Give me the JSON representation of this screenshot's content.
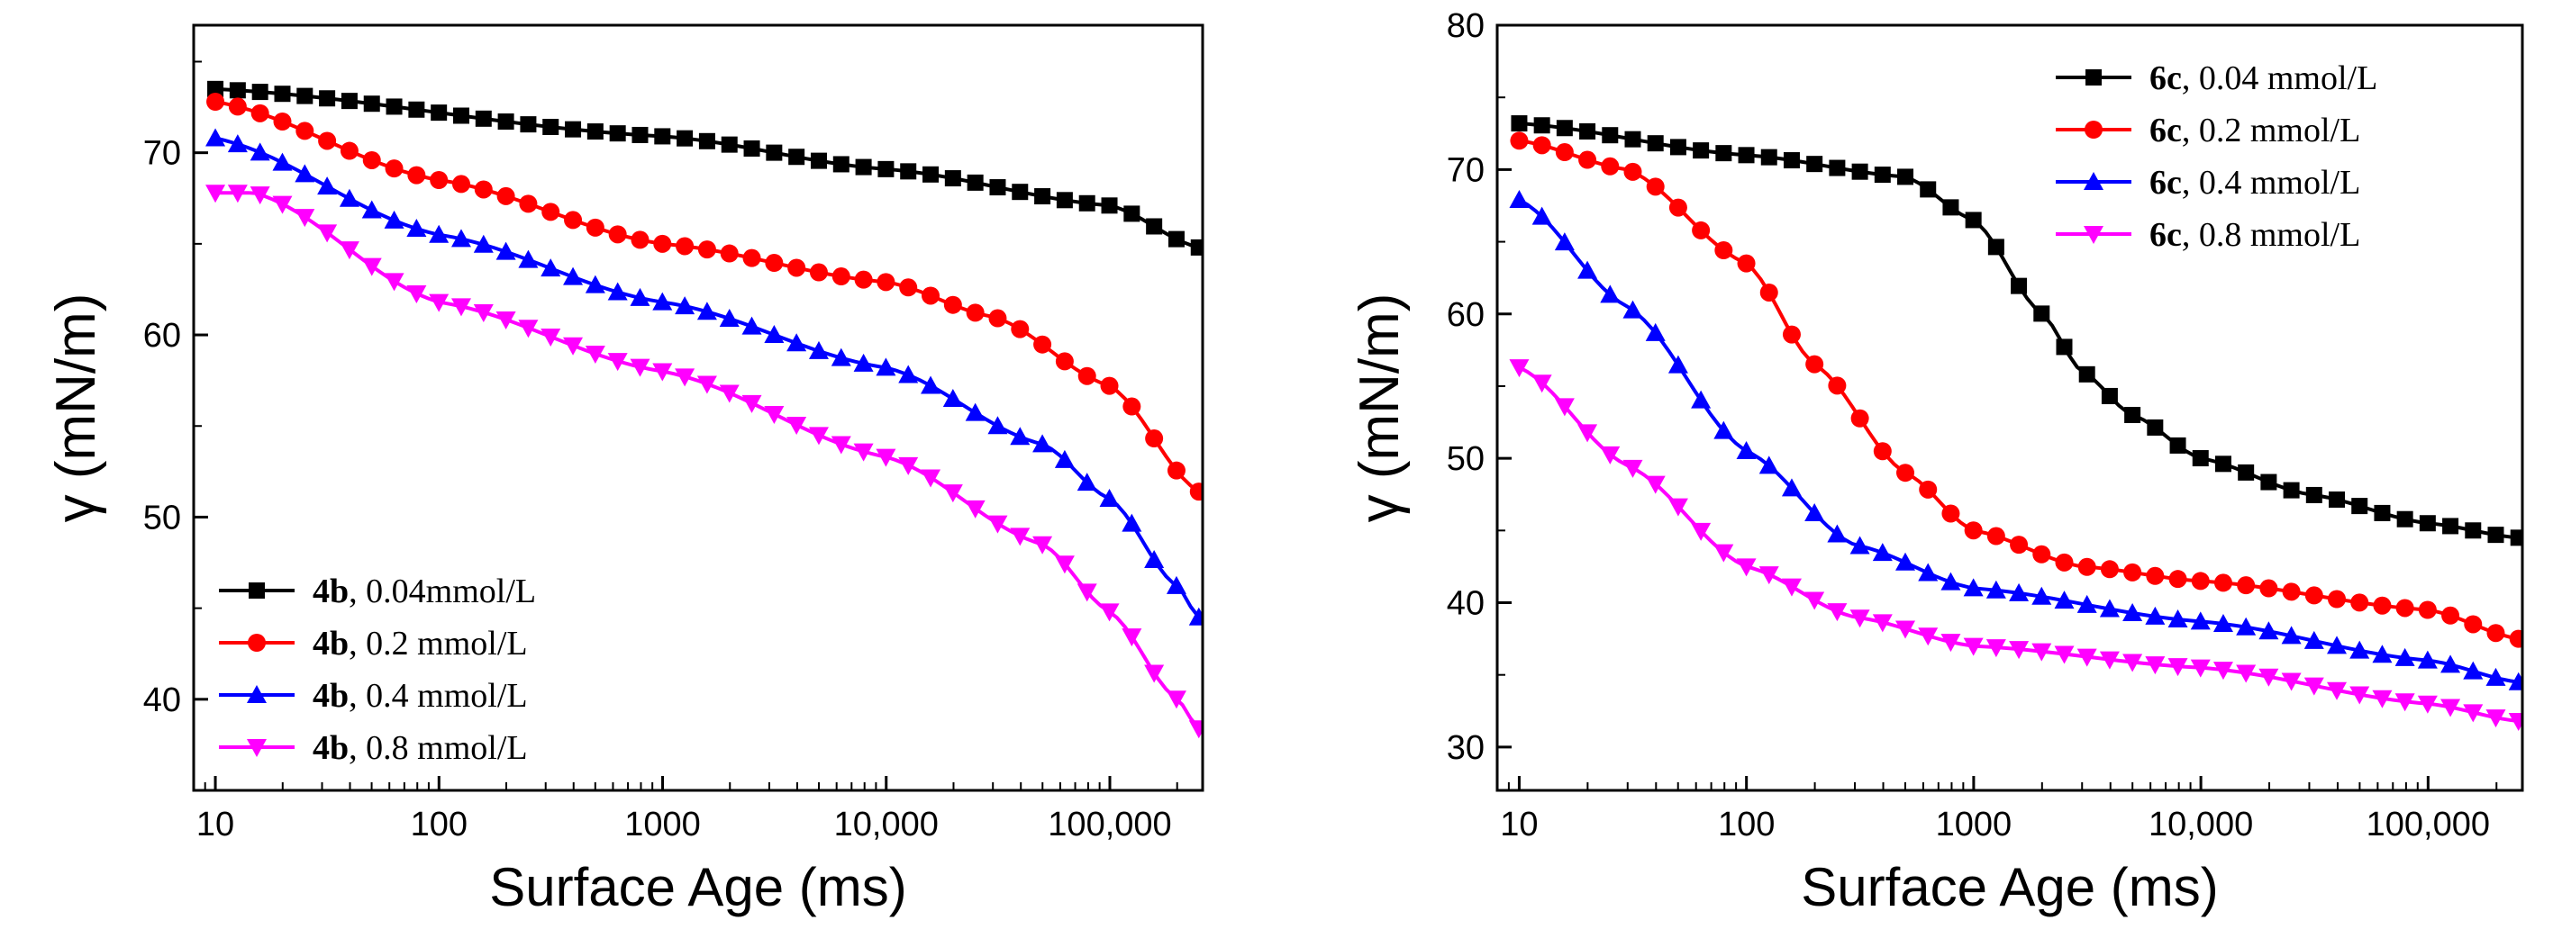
{
  "chart_data": [
    {
      "type": "line",
      "xscale": "log",
      "xlabel": "Surface Age (ms)",
      "ylabel": "γ (mN/m)",
      "xlim": [
        8,
        260000
      ],
      "ylim": [
        35,
        77
      ],
      "yticks": [
        40,
        50,
        60,
        70
      ],
      "ytick_labels": [
        "40",
        "50",
        "60",
        "70"
      ],
      "xticks": [
        10,
        100,
        1000,
        10000,
        100000
      ],
      "xtick_labels": [
        "10",
        "100",
        "1000",
        "10,000",
        "100,000"
      ],
      "legend_position": "bottom-left",
      "series": [
        {
          "name": "4b",
          "label_bold": "4b",
          "label_rest": ", 0.04mmol/L",
          "color": "#000000",
          "marker": "square",
          "x": [
            10,
            1000,
            10000,
            100000,
            250000
          ],
          "y": [
            73.5,
            70.9,
            69.1,
            67.1,
            64.8
          ]
        },
        {
          "name": "4b",
          "label_bold": "4b",
          "label_rest": ",  0.2 mmol/L",
          "color": "#ff0000",
          "marker": "circle",
          "x": [
            10,
            100,
            1000,
            10000,
            30000,
            100000,
            250000
          ],
          "y": [
            72.8,
            68.5,
            65.0,
            62.9,
            61.0,
            57.2,
            51.4
          ]
        },
        {
          "name": "4b",
          "label_bold": "4b",
          "label_rest": ",  0.4 mmol/L",
          "color": "#0000ff",
          "marker": "triangle-up",
          "x": [
            10,
            100,
            1000,
            10000,
            50000,
            100000,
            200000,
            250000
          ],
          "y": [
            70.8,
            65.5,
            61.8,
            58.2,
            54.0,
            51.0,
            46.2,
            44.5
          ]
        },
        {
          "name": "4b",
          "label_bold": "4b",
          "label_rest": ",  0.8 mmol/L",
          "color": "#ff00ff",
          "marker": "triangle-down",
          "x": [
            10,
            15,
            100,
            1000,
            10000,
            50000,
            100000,
            200000,
            250000
          ],
          "y": [
            67.8,
            67.8,
            61.8,
            58.0,
            53.3,
            48.5,
            44.8,
            40.0,
            38.4
          ]
        }
      ]
    },
    {
      "type": "line",
      "xscale": "log",
      "xlabel": "Surface Age (ms)",
      "ylabel": "γ (mN/m)",
      "xlim": [
        8,
        260000
      ],
      "ylim": [
        27,
        80
      ],
      "yticks": [
        30,
        40,
        50,
        60,
        70,
        80
      ],
      "ytick_labels": [
        "30",
        "40",
        "50",
        "60",
        "70",
        "80"
      ],
      "xticks": [
        10,
        100,
        1000,
        10000,
        100000
      ],
      "xtick_labels": [
        "10",
        "100",
        "1000",
        "10,000",
        "100,000"
      ],
      "legend_position": "top-right",
      "series": [
        {
          "name": "6c",
          "label_bold": "6c",
          "label_rest": ", 0.04 mmol/L",
          "color": "#000000",
          "marker": "square",
          "x": [
            10,
            100,
            500,
            1000,
            2000,
            3000,
            5000,
            10000,
            30000,
            100000,
            250000
          ],
          "y": [
            73.2,
            71.0,
            69.5,
            66.5,
            60.0,
            56.0,
            53.0,
            50.0,
            47.5,
            45.5,
            44.5
          ]
        },
        {
          "name": "6c",
          "label_bold": "6c",
          "label_rest": ",  0.2 mmol/L",
          "color": "#ff0000",
          "marker": "circle",
          "x": [
            10,
            30,
            100,
            200,
            500,
            1000,
            3000,
            10000,
            100000,
            250000
          ],
          "y": [
            72.0,
            70.0,
            63.5,
            56.5,
            49.0,
            45.0,
            42.5,
            41.5,
            39.5,
            37.5
          ]
        },
        {
          "name": "6c",
          "label_bold": "6c",
          "label_rest": ",  0.4 mmol/L",
          "color": "#0000ff",
          "marker": "triangle-up",
          "x": [
            10,
            30,
            100,
            300,
            1000,
            10000,
            100000,
            250000
          ],
          "y": [
            67.9,
            60.5,
            50.5,
            44.0,
            41.0,
            38.7,
            36.0,
            34.5
          ]
        },
        {
          "name": "6c",
          "label_bold": "6c",
          "label_rest": ",  0.8 mmol/L",
          "color": "#ff00ff",
          "marker": "triangle-down",
          "x": [
            10,
            30,
            100,
            300,
            1000,
            10000,
            100000,
            250000
          ],
          "y": [
            56.3,
            49.5,
            42.5,
            39.0,
            37.0,
            35.5,
            33.0,
            31.8
          ]
        }
      ]
    }
  ]
}
